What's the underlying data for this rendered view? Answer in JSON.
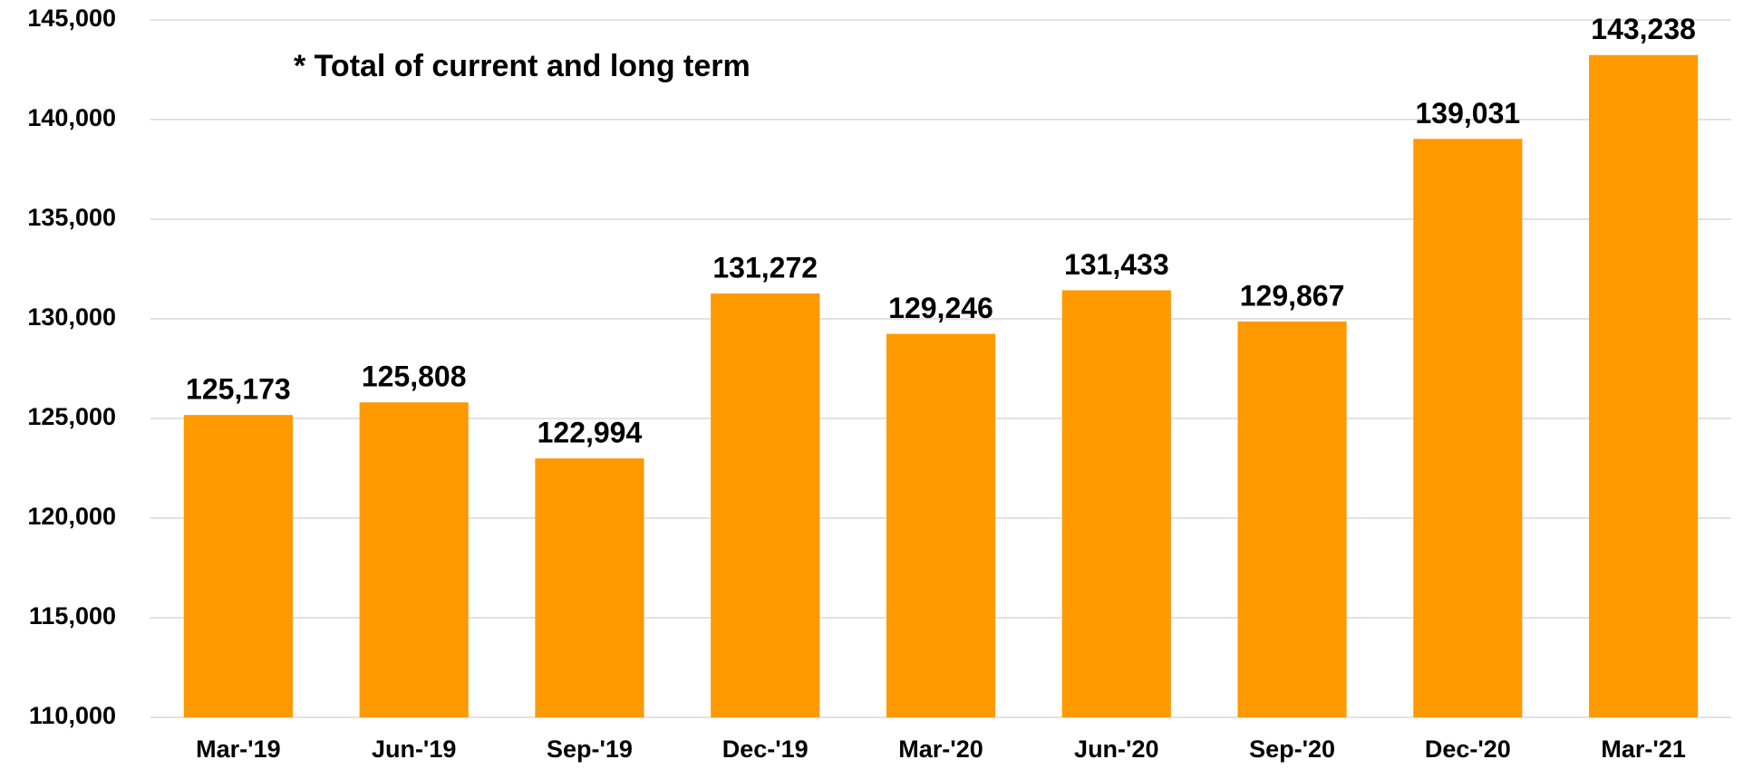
{
  "chart_data": {
    "type": "bar",
    "annotation": "* Total of current and long term",
    "categories": [
      "Mar-'19",
      "Jun-'19",
      "Sep-'19",
      "Dec-'19",
      "Mar-'20",
      "Jun-'20",
      "Sep-'20",
      "Dec-'20",
      "Mar-'21"
    ],
    "values": [
      125173,
      125808,
      122994,
      131272,
      129246,
      131433,
      129867,
      139031,
      143238
    ],
    "value_labels": [
      "125,173",
      "125,808",
      "122,994",
      "131,272",
      "129,246",
      "131,433",
      "129,867",
      "139,031",
      "143,238"
    ],
    "color": "#ff9900",
    "ylim": [
      110000,
      145000
    ],
    "yticks": [
      {
        "value": 110000,
        "label": "110,000"
      },
      {
        "value": 115000,
        "label": "115,000"
      },
      {
        "value": 120000,
        "label": "120,000"
      },
      {
        "value": 125000,
        "label": "125,000"
      },
      {
        "value": 130000,
        "label": "130,000"
      },
      {
        "value": 135000,
        "label": "135,000"
      },
      {
        "value": 140000,
        "label": "140,000"
      },
      {
        "value": 145000,
        "label": "145,000"
      }
    ],
    "grid": true
  }
}
